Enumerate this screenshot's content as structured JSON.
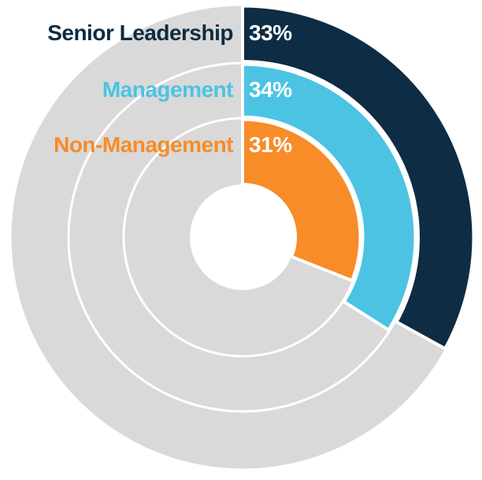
{
  "chart_data": {
    "type": "pie",
    "subtype": "concentric-donut",
    "title": "",
    "direction": "clockwise",
    "start_angle_deg": 0,
    "background": "#FFFFFF",
    "track_color": "#D9D9D9",
    "separator_color": "#FFFFFF",
    "series": [
      {
        "label": "Senior Leadership",
        "value": 33,
        "display": "33%",
        "color": "#0E2C43",
        "ring": "outer"
      },
      {
        "label": "Management",
        "value": 34,
        "display": "34%",
        "color": "#4CC3E3",
        "ring": "middle"
      },
      {
        "label": "Non-Management",
        "value": 31,
        "display": "31%",
        "color": "#F78C28",
        "ring": "inner"
      }
    ],
    "value_label_color": "#FFFFFF",
    "legend_position": "top-left-inside"
  }
}
